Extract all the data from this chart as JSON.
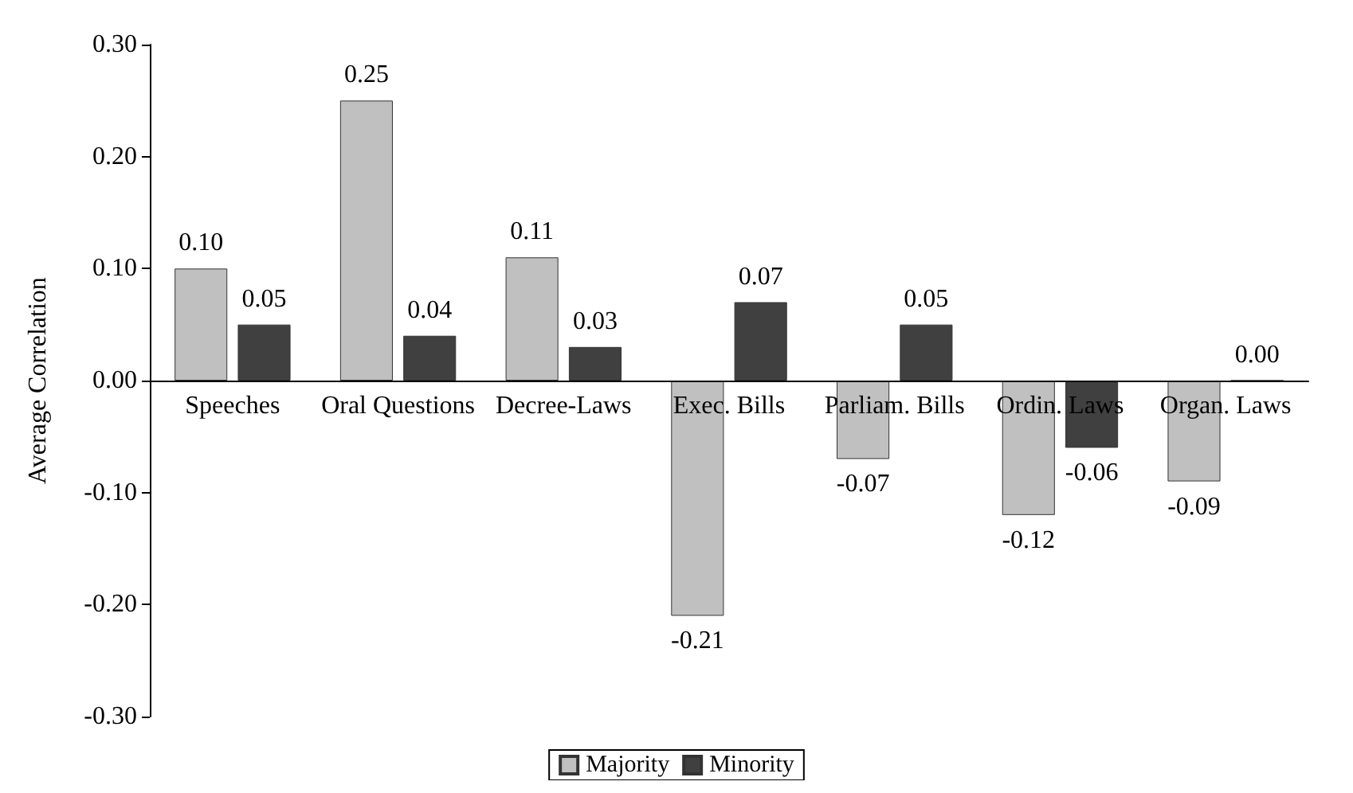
{
  "chart_data": {
    "type": "bar",
    "ylabel": "Average Correlation",
    "categories": [
      "Speeches",
      "Oral Questions",
      "Decree-Laws",
      "Exec. Bills",
      "Parliam. Bills",
      "Ordin. Laws",
      "Organ. Laws"
    ],
    "series": [
      {
        "name": "Majority",
        "color": "#c0c0c0",
        "values": [
          0.1,
          0.25,
          0.11,
          -0.21,
          -0.07,
          -0.12,
          -0.09
        ],
        "value_labels": [
          "0.10",
          "0.25",
          "0.11",
          "-0.21",
          "-0.07",
          "-0.12",
          "-0.09"
        ]
      },
      {
        "name": "Minority",
        "color": "#404040",
        "values": [
          0.05,
          0.04,
          0.03,
          0.07,
          0.05,
          -0.06,
          0.0
        ],
        "value_labels": [
          "0.05",
          "0.04",
          "0.03",
          "0.07",
          "0.05",
          "-0.06",
          "0.00"
        ]
      }
    ],
    "ylim": [
      -0.3,
      0.3
    ],
    "yticks": [
      {
        "value": -0.3,
        "label": "-0.30"
      },
      {
        "value": -0.2,
        "label": "-0.20"
      },
      {
        "value": -0.1,
        "label": "-0.10"
      },
      {
        "value": 0,
        "label": "0.00"
      },
      {
        "value": 0.1,
        "label": "0.10"
      },
      {
        "value": 0.2,
        "label": "0.20"
      },
      {
        "value": 0.3,
        "label": "0.30"
      }
    ],
    "grid": false,
    "legend": "bottom"
  }
}
